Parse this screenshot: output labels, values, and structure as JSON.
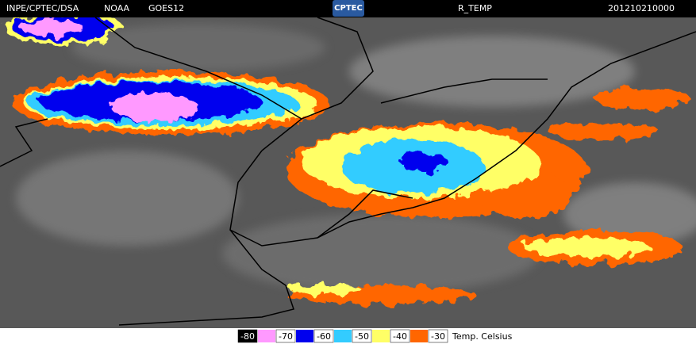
{
  "header": {
    "source": "INPE/CPTEC/DSA",
    "agency": "NOAA",
    "satellite": "GOES12",
    "logo": "CPTEC",
    "product": "R_TEMP",
    "timestamp": "201210210000"
  },
  "legend": {
    "ticks": [
      -80,
      -70,
      -60,
      -50,
      -40,
      -30
    ],
    "colors": [
      "#ff99ff",
      "#0000ee",
      "#33ccff",
      "#ffff66",
      "#ff6600"
    ],
    "unit": "Temp. Celsius"
  }
}
